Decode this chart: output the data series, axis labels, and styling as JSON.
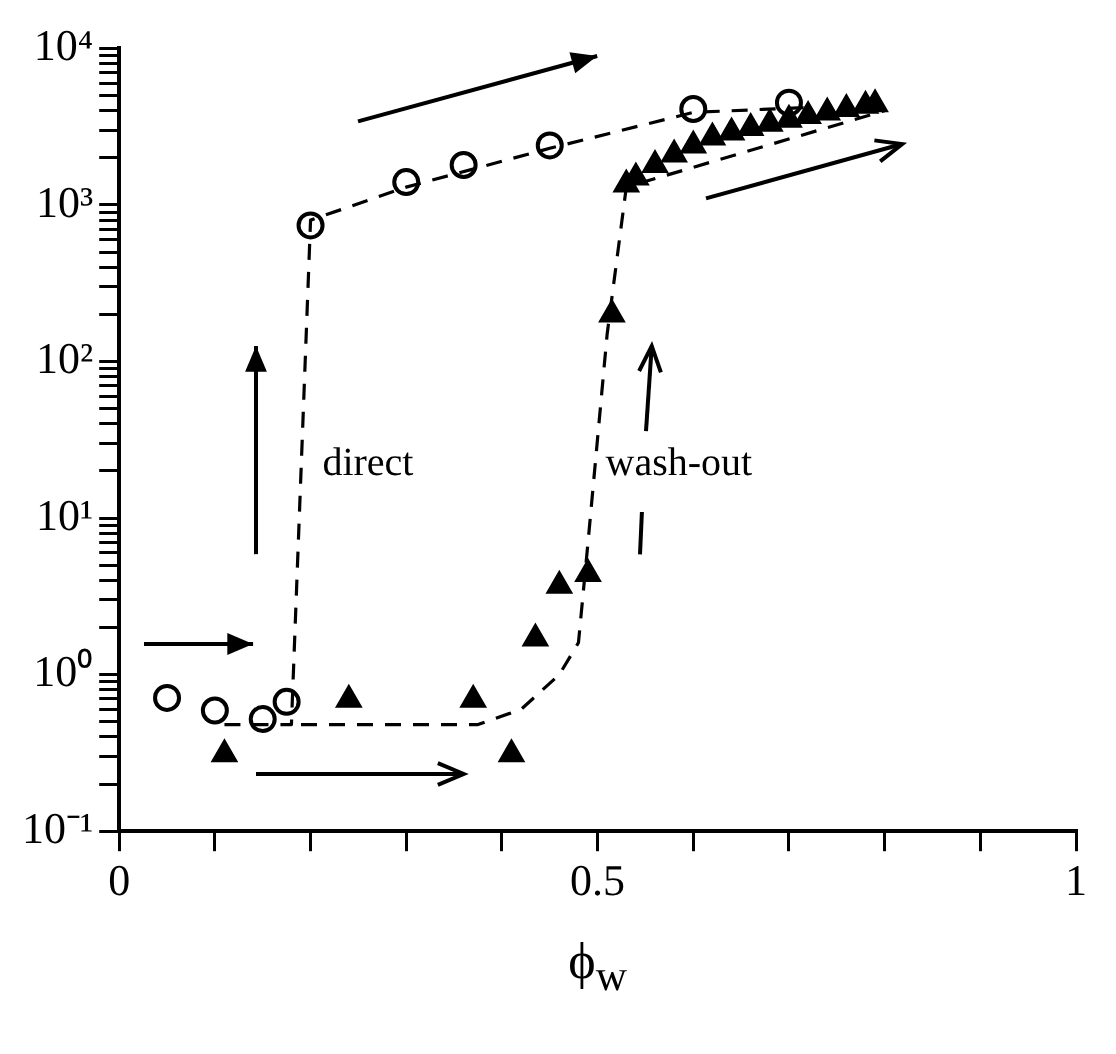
{
  "chart_data": {
    "type": "scatter",
    "xlabel": "ϕ$_{w}$",
    "xlim": [
      0,
      1
    ],
    "xticks": [
      0,
      {
        "value": 0.1,
        "label": null
      },
      {
        "value": 0.2,
        "label": null
      },
      {
        "value": 0.3,
        "label": null
      },
      {
        "value": 0.4,
        "label": null
      },
      {
        "value": 0.5,
        "label": "0.5"
      },
      {
        "value": 0.6,
        "label": null
      },
      {
        "value": 0.7,
        "label": null
      },
      {
        "value": 0.8,
        "label": null
      },
      {
        "value": 0.9,
        "label": null
      },
      1
    ],
    "ylim": [
      0.1,
      10000
    ],
    "yticks": [
      {
        "value": 0.1,
        "label": "10⁻¹"
      },
      {
        "value": 0.2,
        "label": null
      },
      {
        "value": 0.3,
        "label": null
      },
      {
        "value": 0.4,
        "label": null
      },
      {
        "value": 0.5,
        "label": null
      },
      {
        "value": 0.6,
        "label": null
      },
      {
        "value": 0.7,
        "label": null
      },
      {
        "value": 0.8,
        "label": null
      },
      {
        "value": 0.9,
        "label": null
      },
      {
        "value": 1,
        "label": "10⁰"
      },
      {
        "value": 2,
        "label": null
      },
      {
        "value": 3,
        "label": null
      },
      {
        "value": 4,
        "label": null
      },
      {
        "value": 5,
        "label": null
      },
      {
        "value": 6,
        "label": null
      },
      {
        "value": 7,
        "label": null
      },
      {
        "value": 8,
        "label": null
      },
      {
        "value": 9,
        "label": null
      },
      {
        "value": 10,
        "label": "10¹"
      },
      {
        "value": 20,
        "label": null
      },
      {
        "value": 30,
        "label": null
      },
      {
        "value": 40,
        "label": null
      },
      {
        "value": 50,
        "label": null
      },
      {
        "value": 60,
        "label": null
      },
      {
        "value": 70,
        "label": null
      },
      {
        "value": 80,
        "label": null
      },
      {
        "value": 90,
        "label": null
      },
      {
        "value": 100,
        "label": "10²"
      },
      {
        "value": 200,
        "label": null
      },
      {
        "value": 300,
        "label": null
      },
      {
        "value": 400,
        "label": null
      },
      {
        "value": 500,
        "label": null
      },
      {
        "value": 600,
        "label": null
      },
      {
        "value": 700,
        "label": null
      },
      {
        "value": 800,
        "label": null
      },
      {
        "value": 900,
        "label": null
      },
      {
        "value": 1000,
        "label": "10³"
      },
      {
        "value": 2000,
        "label": null
      },
      {
        "value": 3000,
        "label": null
      },
      {
        "value": 4000,
        "label": null
      },
      {
        "value": 5000,
        "label": null
      },
      {
        "value": 6000,
        "label": null
      },
      {
        "value": 7000,
        "label": null
      },
      {
        "value": 8000,
        "label": null
      },
      {
        "value": 9000,
        "label": null
      },
      {
        "value": 10000,
        "label": "10⁴"
      }
    ],
    "log": "y",
    "grid": false,
    "legend": false,
    "series": [
      {
        "type": "scatter",
        "marker": "circle",
        "color": "#000000",
        "x": [
          0.05,
          0.1,
          0.15,
          0.175,
          0.2,
          0.3,
          0.36,
          0.45,
          0.6,
          0.7
        ],
        "values": [
          0.71,
          0.59,
          0.52,
          0.67,
          740,
          1400,
          1800,
          2400,
          4100,
          4500
        ]
      },
      {
        "type": "scatter",
        "marker": "triangle",
        "color": "#000000",
        "x": [
          0.11,
          0.24,
          0.37,
          0.41,
          0.435,
          0.46,
          0.49,
          0.515,
          0.53,
          0.54,
          0.56,
          0.58,
          0.6,
          0.62,
          0.64,
          0.66,
          0.68,
          0.7,
          0.72,
          0.74,
          0.76,
          0.78,
          0.79
        ],
        "values": [
          0.31,
          0.69,
          0.69,
          0.31,
          1.7,
          3.7,
          4.4,
          200,
          1350,
          1500,
          1800,
          2100,
          2400,
          2700,
          2900,
          3100,
          3300,
          3500,
          3700,
          3900,
          4100,
          4300,
          4400
        ]
      },
      {
        "type": "line",
        "marker": "none",
        "line_style": "dashed",
        "color": "#000000",
        "x": [
          0.11,
          0.18,
          0.2,
          0.3,
          0.45,
          0.6,
          0.72
        ],
        "values": [
          0.48,
          0.48,
          800,
          1300,
          2300,
          3900,
          4200
        ]
      },
      {
        "type": "line",
        "marker": "none",
        "line_style": "dashed",
        "color": "#000000",
        "x": [
          0.19,
          0.375,
          0.42,
          0.46,
          0.48,
          0.49,
          0.51,
          0.53,
          0.8
        ],
        "values": [
          0.48,
          0.48,
          0.6,
          1,
          1.6,
          7,
          150,
          1300,
          4000
        ]
      }
    ],
    "annotations": [
      "direct",
      "wash-out"
    ]
  }
}
